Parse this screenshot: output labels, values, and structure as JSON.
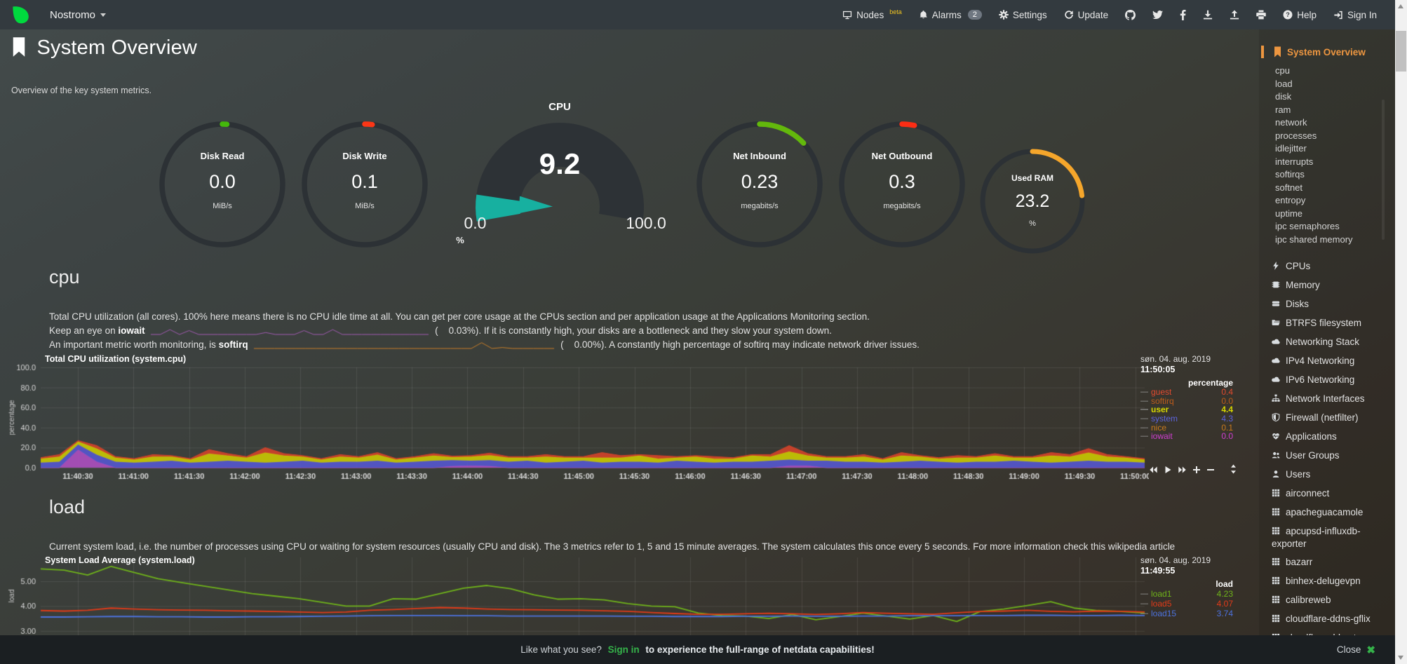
{
  "navbar": {
    "hostname": "Nostromo",
    "nodes_label": "Nodes",
    "nodes_beta": "beta",
    "alarms_label": "Alarms",
    "alarms_count": "2",
    "settings_label": "Settings",
    "update_label": "Update",
    "help_label": "Help",
    "signin_label": "Sign In"
  },
  "header": {
    "title": "System Overview",
    "subtitle": "Overview of the key system metrics."
  },
  "gauges": {
    "disk_read": {
      "label": "Disk Read",
      "value": "0.0",
      "units": "MiB/s",
      "fraction": 0.012,
      "color": "#44b80b"
    },
    "disk_write": {
      "label": "Disk Write",
      "value": "0.1",
      "units": "MiB/s",
      "fraction": 0.02,
      "color": "#fb3616"
    },
    "cpu": {
      "label": "CPU",
      "value": "9.2",
      "min": "0.0",
      "max": "100.0",
      "units": "%",
      "fraction": 0.092,
      "color": "#17b0a0"
    },
    "net_in": {
      "label": "Net Inbound",
      "value": "0.23",
      "units": "megabits/s",
      "fraction": 0.13,
      "color": "#63b80c"
    },
    "net_out": {
      "label": "Net Outbound",
      "value": "0.3",
      "units": "megabits/s",
      "fraction": 0.033,
      "color": "#fb2d14"
    },
    "ram": {
      "label": "Used RAM",
      "value": "23.2",
      "units": "%",
      "fraction": 0.232,
      "color": "#f5a62b"
    }
  },
  "cpu_section": {
    "heading": "cpu",
    "desc1": "Total CPU utilization (all cores). 100% here means there is no CPU idle time at all. You can get per core usage at the CPUs section and per application usage at the Applications Monitoring section.",
    "desc2_pre": "Keep an eye on ",
    "desc2_bold": "iowait",
    "desc2_post": "(    0.03%). If it is constantly high, your disks are a bottleneck and they slow your system down.",
    "desc3_pre": "An important metric worth monitoring, is ",
    "desc3_bold": "softirq",
    "desc3_post": "(    0.00%). A constantly high percentage of softirq may indicate network driver issues.",
    "chart_title": "Total CPU utilization (system.cpu)",
    "date": "søn. 04. aug. 2019",
    "time": "11:50:05",
    "legend_header": "percentage",
    "legend": [
      {
        "label": "guest",
        "value": "0.4",
        "color": "#e04a2e"
      },
      {
        "label": "softirq",
        "value": "0.0",
        "color": "#bd5c1b"
      },
      {
        "label": "user",
        "value": "4.4",
        "color": "#d6d600"
      },
      {
        "label": "system",
        "value": "4.3",
        "color": "#5c63de"
      },
      {
        "label": "nice",
        "value": "0.1",
        "color": "#c87a1c"
      },
      {
        "label": "iowait",
        "value": "0.0",
        "color": "#cf3fd0"
      }
    ],
    "iowait_spark": [
      0,
      0,
      2.5,
      0,
      2,
      0,
      0,
      0,
      0,
      0,
      0,
      0,
      1,
      0,
      0,
      0,
      2,
      0,
      0,
      2.5,
      0,
      0,
      0,
      0,
      0,
      0,
      0,
      0,
      0,
      0
    ],
    "softirq_spark": [
      0,
      0,
      0,
      0,
      0,
      0,
      0,
      0,
      0,
      0,
      0,
      0,
      0,
      0,
      0,
      0,
      0,
      0,
      0,
      0,
      0,
      0,
      3,
      0,
      0.5,
      0,
      0,
      0,
      0,
      0
    ],
    "iowait_spark_color": "#a05ab0",
    "softirq_spark_color": "#c87d28"
  },
  "load_section": {
    "heading": "load",
    "desc1": "Current system load, i.e. the number of processes using CPU or waiting for system resources (usually CPU and disk). The 3 metrics refer to 1, 5 and 15 minute averages. The system calculates this once every 5 seconds. For more information check this wikipedia article",
    "chart_title": "System Load Average (system.load)",
    "date": "søn. 04. aug. 2019",
    "time": "11:49:55",
    "legend_header": "load",
    "legend": [
      {
        "label": "load1",
        "value": "4.23",
        "color": "#6fb31a"
      },
      {
        "label": "load5",
        "value": "4.07",
        "color": "#e33b19"
      },
      {
        "label": "load15",
        "value": "3.74",
        "color": "#4d73e0"
      }
    ]
  },
  "sidebar": {
    "active": "System Overview",
    "sub": [
      "cpu",
      "load",
      "disk",
      "ram",
      "network",
      "processes",
      "idlejitter",
      "interrupts",
      "softirqs",
      "softnet",
      "entropy",
      "uptime",
      "ipc semaphores",
      "ipc shared memory"
    ],
    "menu": [
      {
        "icon": "bolt-icon",
        "label": "CPUs"
      },
      {
        "icon": "memory-icon",
        "label": "Memory"
      },
      {
        "icon": "disks-icon",
        "label": "Disks"
      },
      {
        "icon": "folder-icon",
        "label": "BTRFS filesystem"
      },
      {
        "icon": "cloud-icon",
        "label": "Networking Stack"
      },
      {
        "icon": "cloud-icon",
        "label": "IPv4 Networking"
      },
      {
        "icon": "cloud-icon",
        "label": "IPv6 Networking"
      },
      {
        "icon": "sitemap-icon",
        "label": "Network Interfaces"
      },
      {
        "icon": "shield-icon",
        "label": "Firewall (netfilter)"
      },
      {
        "icon": "heartbeat-icon",
        "label": "Applications"
      },
      {
        "icon": "users-icon",
        "label": "User Groups"
      },
      {
        "icon": "user-icon",
        "label": "Users"
      },
      {
        "icon": "grid-icon",
        "label": "airconnect"
      },
      {
        "icon": "grid-icon",
        "label": "apacheguacamole"
      },
      {
        "icon": "grid-icon",
        "label": "apcupsd-influxdb-exporter"
      },
      {
        "icon": "grid-icon",
        "label": "bazarr"
      },
      {
        "icon": "grid-icon",
        "label": "binhex-delugevpn"
      },
      {
        "icon": "grid-icon",
        "label": "calibreweb"
      },
      {
        "icon": "grid-icon",
        "label": "cloudflare-ddns-gflix"
      },
      {
        "icon": "grid-icon",
        "label": "cloudflare-ddns-tr"
      }
    ]
  },
  "footer": {
    "pre": "Like what you see?",
    "signin": "Sign in",
    "post": "to experience the full-range of netdata capabilities!",
    "close": "Close",
    "close_x": "✖"
  },
  "chart_data": [
    {
      "id": "cpu",
      "type": "area",
      "stacked": true,
      "title": "Total CPU utilization (system.cpu)",
      "ylabel": "percentage",
      "ylim": [
        0,
        100
      ],
      "y_ticks": [
        "0.0",
        "20.0",
        "40.0",
        "60.0",
        "80.0",
        "100.0"
      ],
      "y_tick_values": [
        0,
        20,
        40,
        60,
        80,
        100
      ],
      "x_ticks": [
        "11:40:30",
        "11:41:00",
        "11:41:30",
        "11:42:00",
        "11:42:30",
        "11:43:00",
        "11:43:30",
        "11:44:00",
        "11:44:30",
        "11:45:00",
        "11:45:30",
        "11:46:00",
        "11:46:30",
        "11:47:00",
        "11:47:30",
        "11:48:00",
        "11:48:30",
        "11:49:00",
        "11:49:30",
        "11:50:00"
      ],
      "series": [
        {
          "name": "iowait",
          "color": "#b04fc4",
          "values": [
            0,
            0,
            18,
            6,
            0,
            0,
            0,
            0,
            0,
            0,
            0,
            0,
            0,
            0,
            0,
            0,
            0,
            0,
            0,
            0,
            0,
            0,
            1.5,
            2,
            1.5,
            0,
            0,
            0,
            0,
            0,
            0,
            0,
            0,
            0,
            0,
            0,
            0,
            0,
            0,
            0,
            2,
            2,
            0,
            0,
            0,
            0,
            0,
            0,
            0,
            0,
            0,
            0,
            0,
            0,
            0,
            0,
            0,
            0,
            0,
            0
          ]
        },
        {
          "name": "system",
          "color": "#5558d4",
          "values": [
            5,
            6,
            5,
            7,
            6,
            5,
            6,
            7,
            5,
            6,
            7,
            6,
            5,
            6,
            7,
            5,
            6,
            6,
            7,
            5,
            6,
            7,
            6,
            5,
            6,
            6,
            7,
            5,
            6,
            7,
            5,
            6,
            6,
            5,
            7,
            6,
            5,
            6,
            6,
            7,
            6,
            5,
            7,
            6,
            6,
            5,
            6,
            7,
            6,
            5,
            6,
            6,
            7,
            6,
            5,
            6,
            7,
            6,
            6,
            5
          ]
        },
        {
          "name": "user",
          "color": "#cdcd00",
          "values": [
            4,
            5,
            3,
            6,
            4,
            3,
            5,
            4,
            3,
            8,
            5,
            4,
            10,
            6,
            4,
            3,
            5,
            4,
            6,
            3,
            4,
            5,
            3,
            4,
            5,
            4,
            3,
            6,
            4,
            3,
            5,
            4,
            6,
            4,
            3,
            5,
            4,
            3,
            6,
            4,
            8,
            5,
            3,
            4,
            5,
            3,
            6,
            4,
            3,
            5,
            4,
            6,
            3,
            4,
            7,
            5,
            8,
            5,
            4,
            3
          ]
        },
        {
          "name": "guest",
          "color": "#d6432a",
          "values": [
            1,
            2,
            1,
            3,
            1,
            1,
            2,
            1,
            1,
            4,
            2,
            1,
            5,
            2,
            1,
            1,
            2,
            1,
            2,
            1,
            1,
            2,
            1,
            1,
            2,
            1,
            1,
            2,
            1,
            1,
            5,
            2,
            1,
            3,
            1,
            1,
            2,
            1,
            1,
            2,
            6,
            2,
            1,
            1,
            2,
            1,
            3,
            1,
            1,
            2,
            1,
            2,
            1,
            1,
            3,
            2,
            4,
            2,
            1,
            1
          ]
        }
      ]
    },
    {
      "id": "load",
      "type": "line",
      "title": "System Load Average (system.load)",
      "ylabel": "load",
      "y_ticks": [
        "5.00",
        "4.00",
        "3.00"
      ],
      "y_tick_values": [
        5,
        4,
        3
      ],
      "series": [
        {
          "name": "load1",
          "color": "#6fb31a",
          "values": [
            5.5,
            5.45,
            5.25,
            5.6,
            5.35,
            5.1,
            4.95,
            4.8,
            4.65,
            4.5,
            4.4,
            4.3,
            4.15,
            4.0,
            4.0,
            4.3,
            4.28,
            4.5,
            4.72,
            4.83,
            4.7,
            4.45,
            4.28,
            4.3,
            4.25,
            4.1,
            4.0,
            3.97,
            3.72,
            3.62,
            3.6,
            3.5,
            3.66,
            3.45,
            3.58,
            3.72,
            3.6,
            3.48,
            3.62,
            3.38,
            3.78,
            3.88,
            4.02,
            4.18,
            3.92,
            3.82,
            3.78,
            3.72
          ]
        },
        {
          "name": "load5",
          "color": "#e33b19",
          "values": [
            3.82,
            3.8,
            3.83,
            3.92,
            3.88,
            3.85,
            3.84,
            3.83,
            3.81,
            3.8,
            3.78,
            3.76,
            3.74,
            3.76,
            3.83,
            3.86,
            3.9,
            3.94,
            3.92,
            3.88,
            3.86,
            3.85,
            3.84,
            3.83,
            3.81,
            3.79,
            3.74,
            3.7,
            3.67,
            3.67,
            3.69,
            3.71,
            3.69,
            3.66,
            3.69,
            3.74,
            3.71,
            3.69,
            3.67,
            3.73,
            3.78,
            3.8,
            3.83,
            3.79,
            3.77,
            3.8,
            3.79,
            3.76
          ]
        },
        {
          "name": "load15",
          "color": "#4d73e0",
          "values": [
            3.56,
            3.56,
            3.57,
            3.58,
            3.58,
            3.57,
            3.57,
            3.56,
            3.56,
            3.57,
            3.57,
            3.58,
            3.59,
            3.6,
            3.61,
            3.62,
            3.62,
            3.62,
            3.61,
            3.61,
            3.6,
            3.6,
            3.6,
            3.6,
            3.6,
            3.59,
            3.59,
            3.58,
            3.58,
            3.58,
            3.59,
            3.59,
            3.6,
            3.59,
            3.59,
            3.6,
            3.6,
            3.61,
            3.61,
            3.61,
            3.62,
            3.62,
            3.63,
            3.63,
            3.62,
            3.62,
            3.63,
            3.62
          ]
        }
      ]
    }
  ]
}
